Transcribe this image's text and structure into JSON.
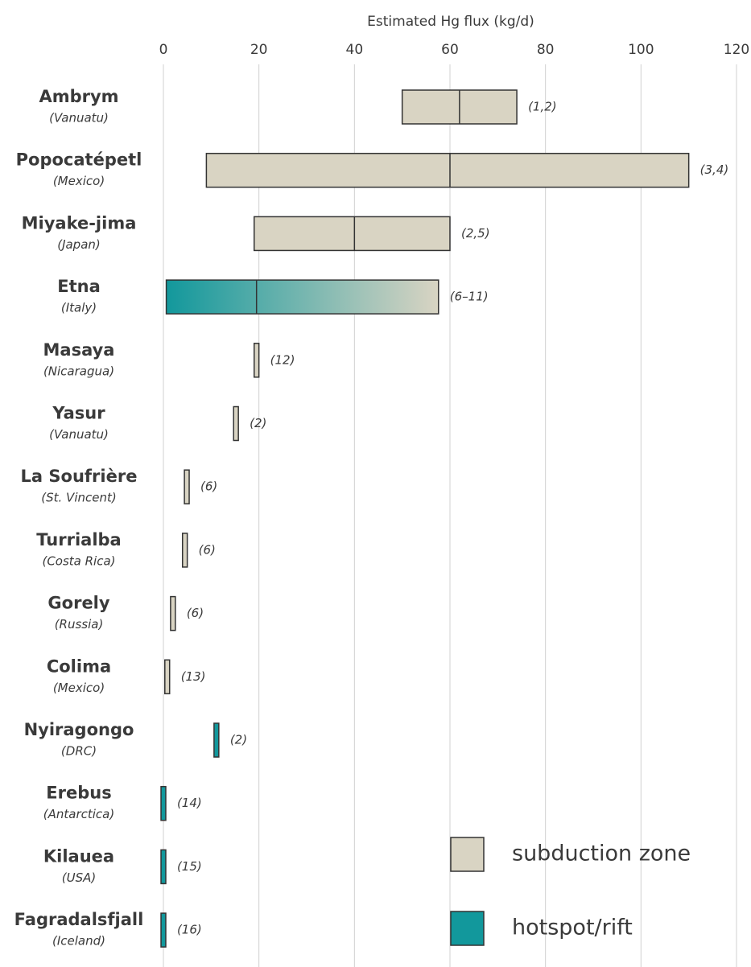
{
  "chart_data": {
    "type": "range_bar",
    "x_label": "Estimated Hg flux (kg/d)",
    "xlim": [
      0,
      120
    ],
    "xticks": [
      0,
      20,
      40,
      60,
      80,
      100,
      120
    ],
    "grid": true,
    "categories": [
      "Ambrym",
      "Popocatépetl",
      "Miyake-jima",
      "Etna",
      "Masaya",
      "Yasur",
      "La Soufrière",
      "Turrialba",
      "Gorely",
      "Colima",
      "Nyiragongo",
      "Erebus",
      "Kilauea",
      "Fagradalsfjall"
    ],
    "subtitles": [
      "(Vanuatu)",
      "(Mexico)",
      "(Japan)",
      "(Italy)",
      "(Nicaragua)",
      "(Vanuatu)",
      "(St. Vincent)",
      "(Costa Rica)",
      "(Russia)",
      "(Mexico)",
      "(DRC)",
      "(Antarctica)",
      "(USA)",
      "(Iceland)"
    ],
    "low": [
      50,
      9,
      19,
      0.6,
      19,
      14.7,
      4.4,
      4,
      1.5,
      0.3,
      10.6,
      -0.5,
      -0.5,
      -0.5
    ],
    "median": [
      62,
      60,
      40,
      19.5,
      null,
      null,
      null,
      null,
      null,
      null,
      null,
      null,
      null,
      null
    ],
    "high": [
      74,
      110,
      60,
      57.6,
      20,
      15.7,
      5.4,
      5,
      2.5,
      1.3,
      11.6,
      0.5,
      0.5,
      0.5
    ],
    "references": [
      "(1,2)",
      "(3,4)",
      "(2,5)",
      "(6–11)",
      "(12)",
      "(2)",
      "(6)",
      "(6)",
      "(6)",
      "(13)",
      "(2)",
      "(14)",
      "(15)",
      "(16)"
    ],
    "colors": [
      "#d9d4c3",
      "#d9d4c3",
      "#d9d4c3",
      [
        "#12989c",
        "#d9d4c3"
      ],
      "#d9d4c3",
      "#d9d4c3",
      "#d9d4c3",
      "#d9d4c3",
      "#d9d4c3",
      "#d9d4c3",
      "#12989c",
      "#12989c",
      "#12989c",
      "#12989c"
    ],
    "legend": [
      {
        "name": "subduction zone",
        "color": "#d9d4c3"
      },
      {
        "name": "hotspot/rift",
        "color": "#12989c"
      }
    ]
  }
}
